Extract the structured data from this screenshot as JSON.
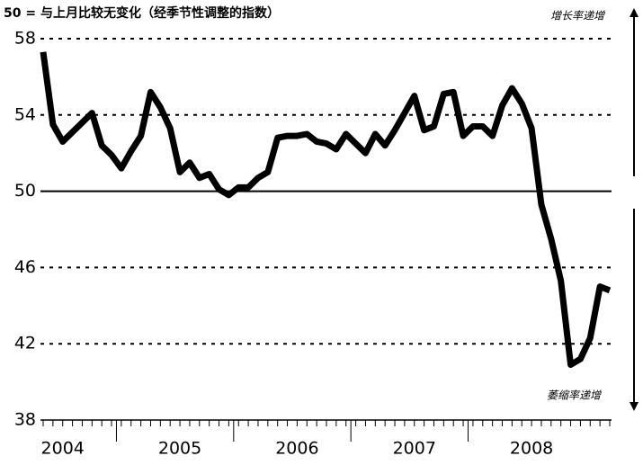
{
  "chart_data": {
    "type": "line",
    "title": "50 = 与上月比较无变化（经季节性调整的指数）",
    "annotations": [
      "增长率递增",
      "萎缩率递增"
    ],
    "categories": [
      null,
      null,
      "2004",
      null,
      null,
      null,
      null,
      null,
      null,
      null,
      null,
      null,
      null,
      null,
      "2005",
      null,
      null,
      null,
      null,
      null,
      null,
      null,
      null,
      null,
      null,
      null,
      "2006",
      null,
      null,
      null,
      null,
      null,
      null,
      null,
      null,
      null,
      null,
      null,
      "2007",
      null,
      null,
      null,
      null,
      null,
      null,
      null,
      null,
      null,
      null,
      null,
      "2008",
      null,
      null,
      null,
      null,
      null,
      null,
      null,
      null
    ],
    "series": [
      {
        "name": "指数",
        "color": "#000000",
        "values": [
          57.3,
          53.5,
          52.6,
          53.1,
          53.6,
          54.1,
          52.4,
          51.9,
          51.2,
          52.1,
          52.9,
          55.2,
          54.4,
          53.3,
          51.0,
          51.5,
          50.7,
          50.9,
          50.1,
          49.8,
          50.2,
          50.2,
          50.7,
          51.0,
          52.8,
          52.9,
          52.9,
          53.0,
          52.6,
          52.5,
          52.2,
          53.0,
          52.5,
          52.0,
          53.0,
          52.4,
          53.2,
          54.1,
          55.0,
          53.2,
          53.4,
          55.1,
          55.2,
          52.9,
          53.4,
          53.4,
          52.9,
          54.5,
          55.4,
          54.6,
          53.3,
          49.3,
          47.5,
          45.3,
          40.9,
          41.2,
          42.3,
          45.0,
          44.8
        ]
      }
    ],
    "ylim": [
      38,
      58
    ],
    "yticks": [
      38,
      42,
      46,
      50,
      54,
      58
    ],
    "reference_line": 50,
    "grid": true
  }
}
